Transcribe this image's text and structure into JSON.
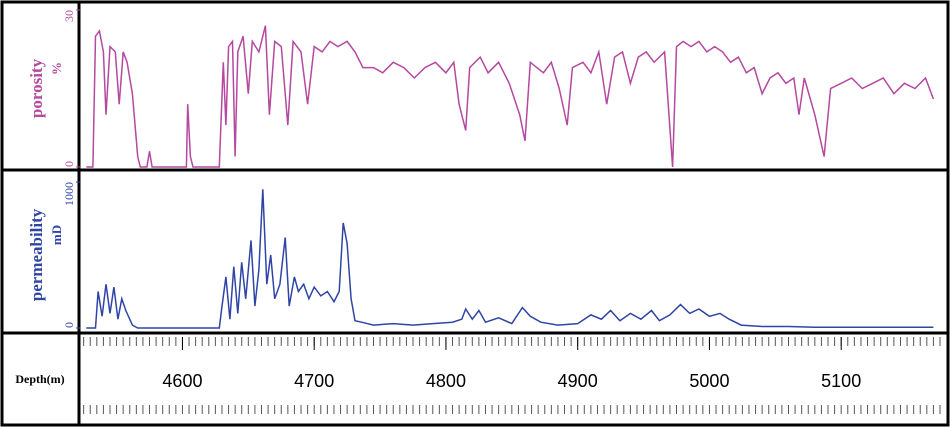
{
  "chart_data": [
    {
      "type": "line",
      "ylabel": "porosity",
      "yunit": "%",
      "color": "#b5489f",
      "ylim": [
        0,
        30
      ],
      "yticks": [
        0,
        30
      ],
      "x": [
        4527,
        4532,
        4534,
        4537,
        4540,
        4542,
        4545,
        4549,
        4552,
        4555,
        4558,
        4562,
        4566,
        4568,
        4573,
        4575,
        4577,
        4600,
        4603,
        4604,
        4606,
        4608,
        4628,
        4631,
        4633,
        4635,
        4638,
        4640,
        4642,
        4646,
        4650,
        4653,
        4658,
        4663,
        4666,
        4670,
        4675,
        4680,
        4684,
        4690,
        4695,
        4700,
        4706,
        4712,
        4718,
        4725,
        4731,
        4737,
        4745,
        4752,
        4760,
        4768,
        4776,
        4784,
        4792,
        4800,
        4806,
        4810,
        4815,
        4818,
        4826,
        4832,
        4840,
        4848,
        4856,
        4860,
        4864,
        4874,
        4880,
        4886,
        4892,
        4896,
        4904,
        4910,
        4916,
        4922,
        4928,
        4934,
        4940,
        4946,
        4952,
        4958,
        4966,
        4972,
        4975,
        4980,
        4986,
        4992,
        4998,
        5004,
        5010,
        5016,
        5022,
        5028,
        5034,
        5040,
        5046,
        5052,
        5058,
        5064,
        5068,
        5072,
        5080,
        5087,
        5092,
        5100,
        5108,
        5116,
        5124,
        5132,
        5140,
        5148,
        5156,
        5164,
        5170
      ],
      "values": [
        0,
        0,
        25,
        26,
        22,
        10,
        23,
        22,
        12,
        22,
        20,
        14,
        2,
        0,
        0,
        3,
        0,
        0,
        0,
        12,
        2,
        0,
        0,
        20,
        8,
        23,
        24,
        2,
        22,
        25,
        14,
        24,
        22,
        27,
        10,
        24,
        23,
        8,
        24,
        22,
        12,
        23,
        22,
        24,
        23,
        24,
        22,
        19,
        19,
        18,
        20,
        19,
        17,
        19,
        20,
        18,
        20,
        12,
        7,
        19,
        21,
        18,
        20,
        16,
        10,
        5,
        20,
        18,
        20,
        15,
        8,
        19,
        20,
        18,
        22,
        12,
        21,
        22,
        16,
        21,
        22,
        20,
        22,
        0,
        23,
        24,
        23,
        24,
        22,
        23,
        22,
        20,
        21,
        18,
        19,
        14,
        17,
        18,
        16,
        17,
        10,
        17,
        10,
        2,
        15,
        16,
        17,
        15,
        16,
        17,
        14,
        16,
        15,
        17,
        13
      ]
    },
    {
      "type": "line",
      "ylabel": "permeability",
      "yunit": "mD",
      "color": "#2f45a6",
      "ylim": [
        0,
        1000
      ],
      "yticks": [
        0,
        1000
      ],
      "x": [
        4527,
        4534,
        4536,
        4539,
        4542,
        4545,
        4548,
        4551,
        4554,
        4557,
        4562,
        4566,
        4628,
        4630,
        4633,
        4636,
        4639,
        4642,
        4645,
        4648,
        4652,
        4655,
        4658,
        4661,
        4664,
        4667,
        4670,
        4674,
        4678,
        4681,
        4685,
        4688,
        4692,
        4696,
        4700,
        4705,
        4710,
        4715,
        4719,
        4722,
        4725,
        4728,
        4731,
        4736,
        4745,
        4760,
        4775,
        4790,
        4805,
        4812,
        4815,
        4820,
        4825,
        4830,
        4840,
        4850,
        4858,
        4864,
        4872,
        4885,
        4900,
        4910,
        4918,
        4925,
        4932,
        4940,
        4948,
        4956,
        4962,
        4970,
        4978,
        4985,
        4992,
        5000,
        5008,
        5015,
        5024,
        5040,
        5060,
        5080,
        5100,
        5120,
        5140,
        5170
      ],
      "values": [
        0,
        0,
        250,
        80,
        300,
        100,
        280,
        60,
        200,
        120,
        20,
        0,
        0,
        150,
        350,
        60,
        420,
        100,
        450,
        200,
        600,
        150,
        400,
        950,
        300,
        500,
        200,
        300,
        620,
        150,
        350,
        250,
        300,
        200,
        280,
        220,
        250,
        180,
        250,
        720,
        580,
        200,
        50,
        40,
        20,
        30,
        20,
        30,
        40,
        60,
        130,
        60,
        120,
        40,
        70,
        30,
        140,
        80,
        40,
        20,
        30,
        90,
        60,
        120,
        50,
        100,
        60,
        120,
        50,
        90,
        160,
        100,
        130,
        80,
        100,
        60,
        20,
        10,
        10,
        5,
        5,
        5,
        5,
        5
      ]
    }
  ],
  "depth_axis": {
    "label": "Depth(m)",
    "xlim": [
      4523,
      5175
    ],
    "xticks": [
      4600,
      4700,
      4800,
      4900,
      5000,
      5100
    ],
    "minor_tick_interval": 5
  }
}
